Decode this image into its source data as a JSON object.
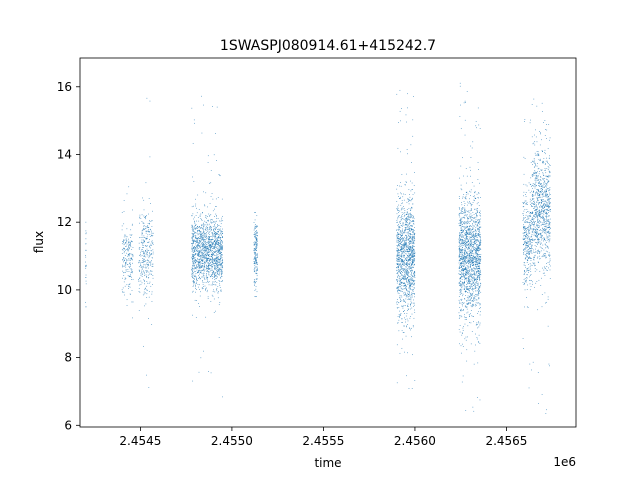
{
  "chart_data": {
    "type": "scatter",
    "title": "1SWASPJ080914.61+415242.7",
    "xlabel": "time",
    "ylabel": "flux",
    "offset_text": "1e6",
    "xlim": [
      2454170,
      2456880
    ],
    "ylim": [
      5.95,
      16.85
    ],
    "grid": false,
    "legend": "none",
    "marker_color": "#1f77b4",
    "x_ticks": [
      2454500,
      2455000,
      2455500,
      2456000,
      2456500
    ],
    "x_tick_labels": [
      "2.4545",
      "2.4550",
      "2.4555",
      "2.4560",
      "2.4565"
    ],
    "y_ticks": [
      6,
      8,
      10,
      12,
      14,
      16
    ],
    "y_tick_labels": [
      "6",
      "8",
      "10",
      "12",
      "14",
      "16"
    ],
    "clusters": [
      {
        "x_start": 2454200,
        "x_end": 2454204,
        "y_center": 10.9,
        "y_spread": 0.9,
        "n": 25,
        "y_min": 9.5,
        "y_max": 12.3
      },
      {
        "x_start": 2454400,
        "x_end": 2454460,
        "y_center": 11.0,
        "y_spread": 0.55,
        "n": 200,
        "y_min": 8.8,
        "y_max": 15.2
      },
      {
        "x_start": 2454490,
        "x_end": 2454570,
        "y_center": 11.0,
        "y_spread": 0.65,
        "n": 320,
        "y_min": 6.3,
        "y_max": 16.2
      },
      {
        "x_start": 2454780,
        "x_end": 2454950,
        "y_center": 11.1,
        "y_spread": 0.55,
        "n": 1500,
        "y_min": 6.7,
        "y_max": 16.3
      },
      {
        "x_start": 2455120,
        "x_end": 2455140,
        "y_center": 11.1,
        "y_spread": 0.5,
        "n": 180,
        "y_min": 9.8,
        "y_max": 12.6
      },
      {
        "x_start": 2455900,
        "x_end": 2456000,
        "y_center": 11.0,
        "y_spread": 0.85,
        "n": 1300,
        "y_min": 6.3,
        "y_max": 16.1
      },
      {
        "x_start": 2456240,
        "x_end": 2456360,
        "y_center": 11.0,
        "y_spread": 0.9,
        "n": 1600,
        "y_min": 6.4,
        "y_max": 16.2
      },
      {
        "x_start": 2456590,
        "x_end": 2456640,
        "y_center": 11.5,
        "y_spread": 0.7,
        "n": 350,
        "y_min": 6.5,
        "y_max": 15.2
      },
      {
        "x_start": 2456640,
        "x_end": 2456740,
        "y_center": 12.4,
        "y_spread": 0.9,
        "n": 900,
        "y_min": 6.3,
        "y_max": 16.4
      }
    ]
  }
}
